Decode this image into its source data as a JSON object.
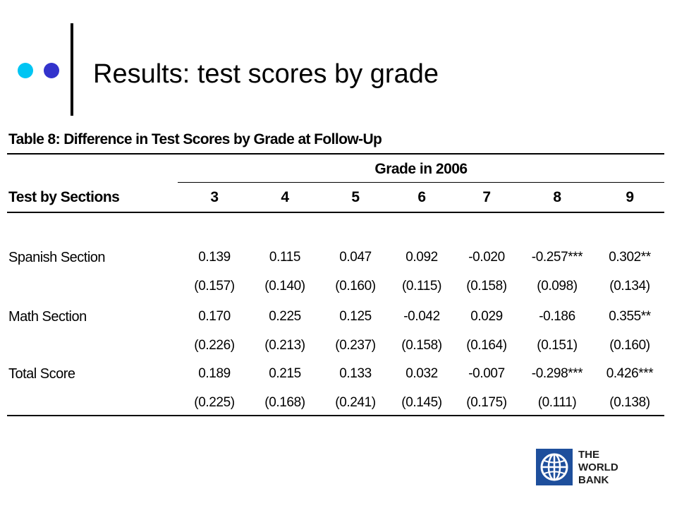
{
  "slide": {
    "title": "Results: test scores by grade",
    "accent_colors": [
      "#00c5f3",
      "#3333cc"
    ]
  },
  "table": {
    "caption": "Table 8: Difference in Test Scores by Grade at Follow-Up",
    "group_header": "Grade in 2006",
    "row_header": "Test by Sections",
    "columns": [
      "3",
      "4",
      "5",
      "6",
      "7",
      "8",
      "9"
    ],
    "rows": [
      {
        "label": "Spanish Section",
        "values": [
          "0.139",
          "0.115",
          "0.047",
          "0.092",
          "-0.020",
          "-0.257***",
          "0.302**"
        ],
        "se": [
          "(0.157)",
          "(0.140)",
          "(0.160)",
          "(0.115)",
          "(0.158)",
          "(0.098)",
          "(0.134)"
        ]
      },
      {
        "label": "Math Section",
        "values": [
          "0.170",
          "0.225",
          "0.125",
          "-0.042",
          "0.029",
          "-0.186",
          "0.355**"
        ],
        "se": [
          "(0.226)",
          "(0.213)",
          "(0.237)",
          "(0.158)",
          "(0.164)",
          "(0.151)",
          "(0.160)"
        ]
      },
      {
        "label": "Total Score",
        "values": [
          "0.189",
          "0.215",
          "0.133",
          "0.032",
          "-0.007",
          "-0.298***",
          "0.426***"
        ],
        "se": [
          "(0.225)",
          "(0.168)",
          "(0.241)",
          "(0.145)",
          "(0.175)",
          "(0.111)",
          "(0.138)"
        ]
      }
    ]
  },
  "logo": {
    "lines": [
      "THE",
      "WORLD",
      "BANK"
    ],
    "color": "#1e4f9c"
  }
}
